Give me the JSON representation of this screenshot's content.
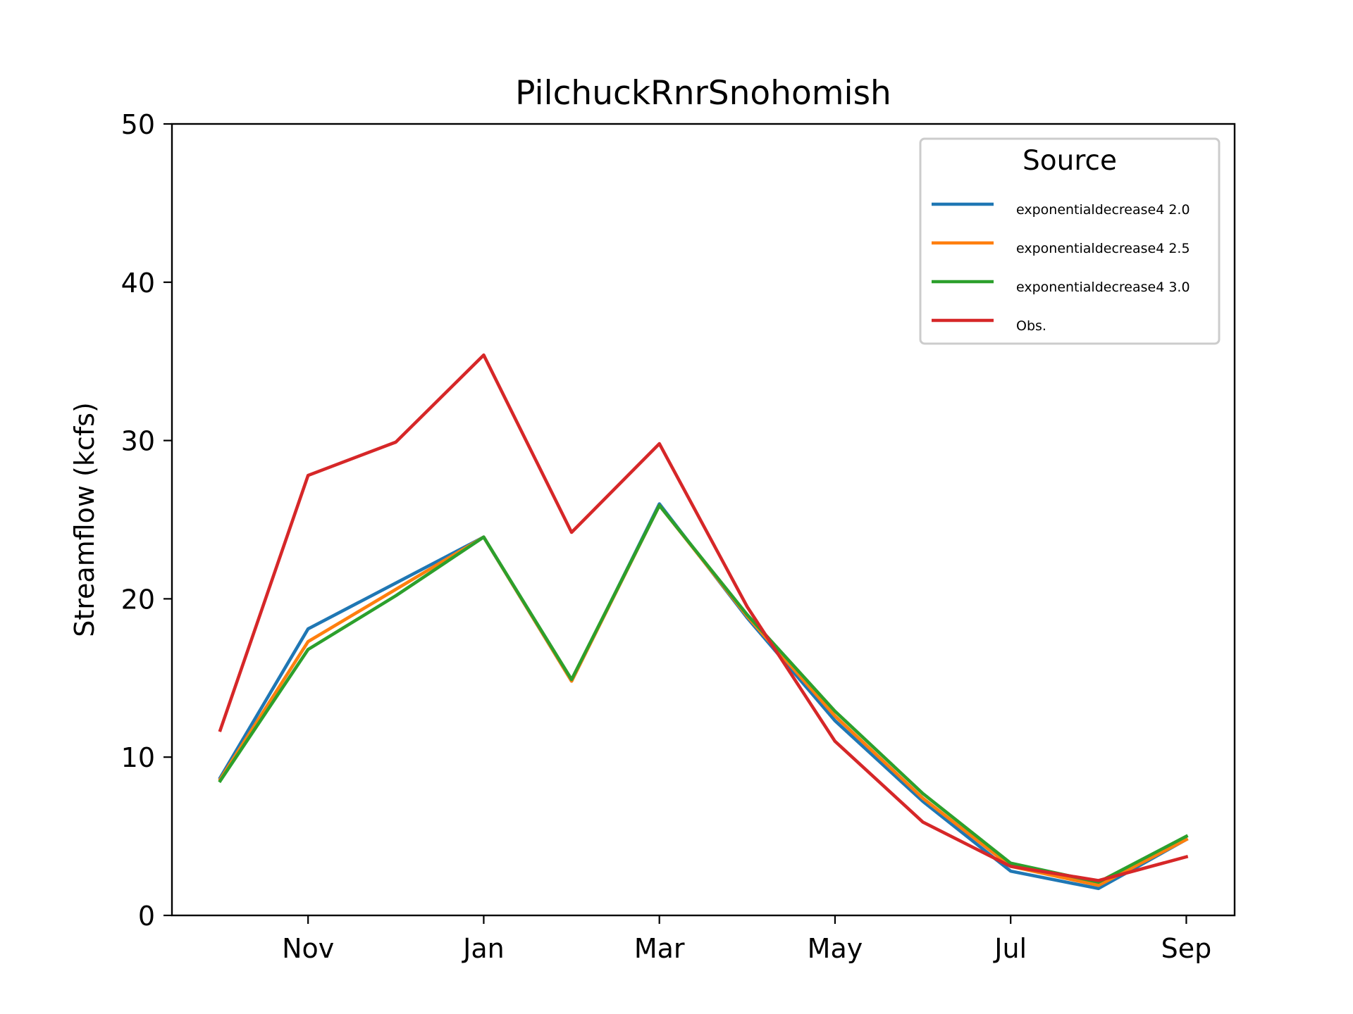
{
  "chart_data": {
    "type": "line",
    "title": "PilchuckRnrSnohomish",
    "xlabel": "",
    "ylabel": "Streamflow (kcfs)",
    "ylim": [
      0,
      50
    ],
    "yticks": [
      0,
      10,
      20,
      30,
      40,
      50
    ],
    "ytick_labels": [
      "0",
      "10",
      "20",
      "30",
      "40",
      "50"
    ],
    "xtick_labels": [
      "Nov",
      "Jan",
      "Mar",
      "May",
      "Jul",
      "Sep"
    ],
    "xtick_positions": [
      1,
      3,
      5,
      7,
      9,
      11
    ],
    "x": [
      0,
      1,
      2,
      3,
      4,
      5,
      6,
      7,
      8,
      9,
      10,
      11
    ],
    "xlim": [
      -0.55,
      11.55
    ],
    "grid": false,
    "legend": {
      "title": "Source",
      "placement": "top-right"
    },
    "series": [
      {
        "name": "exponentialdecrease4 2.0",
        "color": "#1f77b4",
        "values": [
          8.7,
          18.1,
          21.0,
          23.9,
          14.8,
          26.0,
          18.8,
          12.3,
          7.2,
          2.8,
          1.7,
          4.8
        ]
      },
      {
        "name": "exponentialdecrease4 2.5",
        "color": "#ff7f0e",
        "values": [
          8.6,
          17.3,
          20.6,
          23.9,
          14.8,
          25.9,
          18.9,
          12.6,
          7.4,
          3.1,
          1.9,
          4.8
        ]
      },
      {
        "name": "exponentialdecrease4 3.0",
        "color": "#2ca02c",
        "values": [
          8.5,
          16.8,
          20.2,
          23.9,
          14.9,
          25.9,
          19.0,
          12.9,
          7.7,
          3.3,
          2.1,
          5.0
        ]
      },
      {
        "name": "Obs.",
        "color": "#d62728",
        "values": [
          11.7,
          27.8,
          29.9,
          35.4,
          24.2,
          29.8,
          19.5,
          11.0,
          5.9,
          3.1,
          2.2,
          3.7
        ]
      }
    ]
  }
}
